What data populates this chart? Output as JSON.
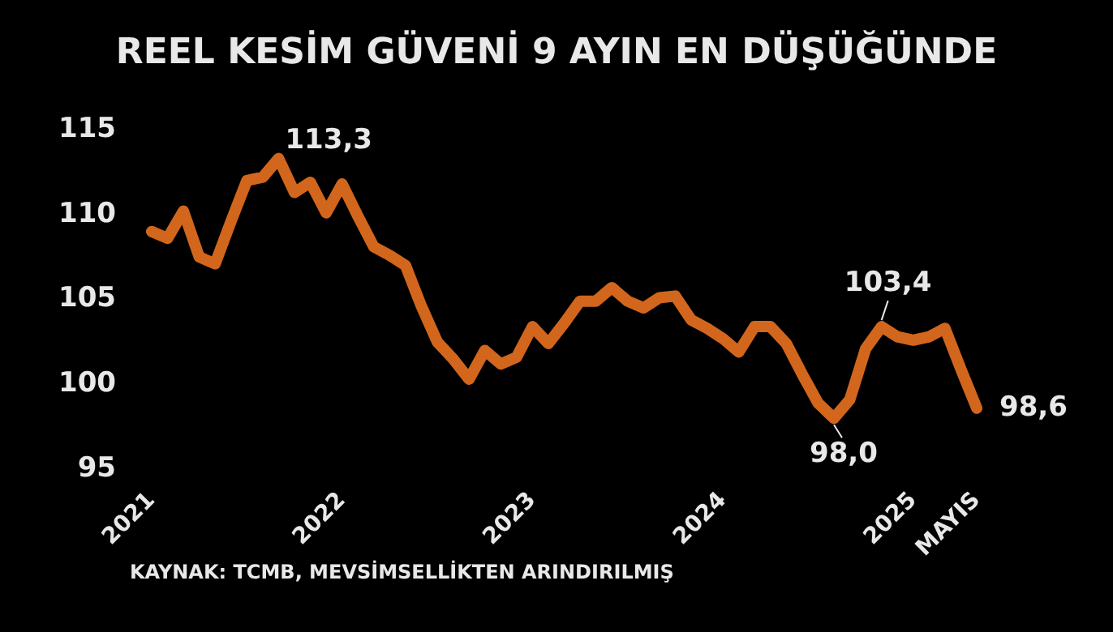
{
  "chart_data": {
    "type": "line",
    "title": "REEL KESİM GÜVENİ 9 AYIN EN DÜŞÜĞÜNDE",
    "categories": [
      "2021",
      null,
      null,
      null,
      null,
      null,
      null,
      null,
      null,
      null,
      null,
      null,
      "2022",
      null,
      null,
      null,
      null,
      null,
      null,
      null,
      null,
      null,
      null,
      null,
      "2023",
      null,
      null,
      null,
      null,
      null,
      null,
      null,
      null,
      null,
      null,
      null,
      "2024",
      null,
      null,
      null,
      null,
      null,
      null,
      null,
      null,
      null,
      null,
      null,
      "2025",
      null,
      null,
      null,
      "MAYIS"
    ],
    "series": [
      {
        "color": "#d2661c",
        "values": [
          109.0,
          108.6,
          110.2,
          107.5,
          107.1,
          109.6,
          112.0,
          112.2,
          113.3,
          111.3,
          111.9,
          110.1,
          111.8,
          109.9,
          108.1,
          107.6,
          107.0,
          104.6,
          102.5,
          101.5,
          100.3,
          102.0,
          101.2,
          101.6,
          103.4,
          102.4,
          103.6,
          104.9,
          104.9,
          105.7,
          104.9,
          104.5,
          105.1,
          105.2,
          103.8,
          103.3,
          102.7,
          101.9,
          103.4,
          103.4,
          102.4,
          100.6,
          98.9,
          98.0,
          99.1,
          102.1,
          103.4,
          102.8,
          102.6,
          102.8,
          103.3,
          100.9,
          98.6
        ],
        "value_labels": [
          null,
          null,
          null,
          null,
          null,
          null,
          null,
          null,
          "113,3",
          null,
          null,
          null,
          null,
          null,
          null,
          null,
          null,
          null,
          null,
          null,
          null,
          null,
          null,
          null,
          null,
          null,
          null,
          null,
          null,
          null,
          null,
          null,
          null,
          null,
          null,
          null,
          null,
          null,
          null,
          null,
          null,
          null,
          null,
          "98,0",
          null,
          null,
          "103,4",
          null,
          null,
          null,
          null,
          null,
          "98,6"
        ]
      }
    ],
    "ylim": [
      95,
      115
    ],
    "yticks": [
      95,
      100,
      105,
      110,
      115
    ],
    "grid": false,
    "legend": false,
    "marker": "none",
    "line_style": "solid",
    "annotations": [
      "KAYNAK: TCMB, MEVSİMSELLİKTEN ARINDIRILMIŞ"
    ]
  }
}
